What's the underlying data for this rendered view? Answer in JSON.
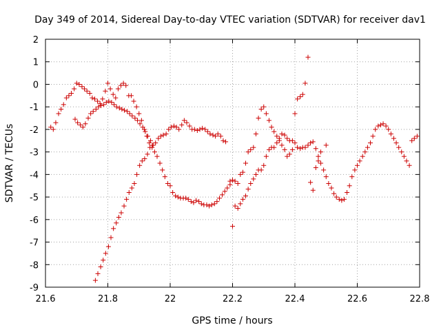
{
  "chart_data": {
    "type": "scatter",
    "title": "Day 349 of 2014, Sidereal Day-to-day VTEC variation (SDTVAR) for receiver dav1",
    "xlabel": "GPS time / hours",
    "ylabel": "SDTVAR / TECUs",
    "xlim": [
      21.6,
      22.8
    ],
    "ylim": [
      -9,
      2
    ],
    "xticks": [
      "21.6",
      "21.8",
      "22",
      "22.2",
      "22.4",
      "22.6",
      "22.8"
    ],
    "yticks": [
      "2",
      "1",
      "0",
      "-1",
      "-2",
      "-3",
      "-4",
      "-5",
      "-6",
      "-7",
      "-8",
      "-9"
    ],
    "grid": true,
    "marker": "+",
    "color": "#cc0000",
    "series": [
      {
        "values": [
          [
            21.617,
            -1.9
          ],
          [
            21.625,
            -2.0
          ],
          [
            21.633,
            -1.7
          ],
          [
            21.642,
            -1.3
          ],
          [
            21.65,
            -1.1
          ],
          [
            21.658,
            -0.9
          ],
          [
            21.667,
            -0.6
          ],
          [
            21.675,
            -0.5
          ],
          [
            21.683,
            -0.4
          ],
          [
            21.692,
            -0.2
          ],
          [
            21.7,
            0.05
          ],
          [
            21.708,
            0.0
          ],
          [
            21.717,
            -0.1
          ],
          [
            21.725,
            -0.2
          ],
          [
            21.733,
            -0.3
          ],
          [
            21.742,
            -0.4
          ],
          [
            21.75,
            -0.6
          ],
          [
            21.758,
            -0.65
          ],
          [
            21.767,
            -0.75
          ],
          [
            21.775,
            -0.85
          ],
          [
            21.783,
            -0.65
          ],
          [
            21.792,
            -0.3
          ],
          [
            21.8,
            0.05
          ],
          [
            21.808,
            -0.2
          ],
          [
            21.817,
            -0.45
          ],
          [
            21.825,
            -0.6
          ],
          [
            21.833,
            -0.2
          ],
          [
            21.842,
            -0.05
          ],
          [
            21.85,
            0.05
          ],
          [
            21.858,
            -0.05
          ],
          [
            21.867,
            -0.5
          ],
          [
            21.875,
            -0.5
          ],
          [
            21.883,
            -0.75
          ],
          [
            21.892,
            -1.0
          ],
          [
            21.9,
            -1.3
          ],
          [
            21.908,
            -1.6
          ],
          [
            21.917,
            -2.0
          ],
          [
            21.925,
            -2.3
          ],
          [
            21.933,
            -2.6
          ],
          [
            21.942,
            -2.8
          ],
          [
            21.95,
            -3.0
          ],
          [
            21.958,
            -3.2
          ],
          [
            21.967,
            -3.5
          ],
          [
            21.975,
            -3.8
          ],
          [
            21.983,
            -4.1
          ],
          [
            21.992,
            -4.4
          ],
          [
            22.0,
            -4.5
          ],
          [
            22.008,
            -4.8
          ],
          [
            22.017,
            -4.95
          ],
          [
            22.025,
            -5.0
          ],
          [
            22.033,
            -5.05
          ],
          [
            22.042,
            -5.05
          ],
          [
            22.05,
            -5.05
          ],
          [
            22.058,
            -5.1
          ],
          [
            22.067,
            -5.2
          ],
          [
            22.075,
            -5.25
          ],
          [
            22.083,
            -5.15
          ],
          [
            22.092,
            -5.2
          ],
          [
            22.1,
            -5.3
          ],
          [
            22.108,
            -5.35
          ],
          [
            22.117,
            -5.35
          ],
          [
            22.125,
            -5.4
          ],
          [
            22.133,
            -5.35
          ],
          [
            22.142,
            -5.3
          ],
          [
            22.15,
            -5.2
          ],
          [
            22.158,
            -5.05
          ],
          [
            22.167,
            -4.9
          ],
          [
            22.175,
            -4.75
          ],
          [
            22.183,
            -4.6
          ],
          [
            22.192,
            -4.45
          ],
          [
            22.2,
            -4.25
          ],
          [
            22.208,
            -4.3
          ],
          [
            22.217,
            -5.5
          ],
          [
            22.225,
            -5.3
          ],
          [
            22.233,
            -5.1
          ],
          [
            22.242,
            -4.95
          ],
          [
            22.25,
            -4.65
          ],
          [
            22.258,
            -4.4
          ],
          [
            22.267,
            -4.2
          ],
          [
            22.275,
            -4.0
          ],
          [
            22.283,
            -3.8
          ],
          [
            22.292,
            -3.8
          ],
          [
            22.3,
            -3.6
          ],
          [
            22.308,
            -3.2
          ],
          [
            22.317,
            -2.9
          ],
          [
            22.325,
            -2.8
          ],
          [
            22.333,
            -2.8
          ],
          [
            22.342,
            -2.6
          ],
          [
            22.35,
            -2.4
          ],
          [
            22.358,
            -2.2
          ],
          [
            22.367,
            -2.25
          ],
          [
            22.375,
            -2.4
          ],
          [
            22.383,
            -2.5
          ],
          [
            22.392,
            -2.5
          ],
          [
            22.4,
            -2.6
          ],
          [
            22.408,
            -2.8
          ],
          [
            22.417,
            -2.85
          ],
          [
            22.425,
            -2.8
          ],
          [
            22.433,
            -2.8
          ],
          [
            22.442,
            -2.7
          ],
          [
            22.45,
            -2.6
          ],
          [
            22.458,
            -2.55
          ],
          [
            22.467,
            -2.85
          ],
          [
            22.475,
            -3.2
          ],
          [
            22.483,
            -3.5
          ],
          [
            22.492,
            -3.8
          ],
          [
            22.5,
            -4.1
          ],
          [
            22.508,
            -4.4
          ],
          [
            22.517,
            -4.6
          ],
          [
            22.525,
            -4.85
          ],
          [
            22.533,
            -5.0
          ],
          [
            22.542,
            -5.1
          ],
          [
            22.55,
            -5.15
          ],
          [
            22.558,
            -5.1
          ],
          [
            22.567,
            -4.8
          ],
          [
            22.575,
            -4.5
          ],
          [
            22.583,
            -4.1
          ],
          [
            22.592,
            -3.8
          ],
          [
            22.6,
            -3.6
          ],
          [
            22.608,
            -3.4
          ],
          [
            22.617,
            -3.2
          ],
          [
            22.625,
            -3.0
          ],
          [
            22.633,
            -2.8
          ],
          [
            22.642,
            -2.6
          ],
          [
            22.65,
            -2.3
          ],
          [
            22.658,
            -2.0
          ],
          [
            22.667,
            -1.85
          ],
          [
            22.675,
            -1.8
          ],
          [
            22.683,
            -1.75
          ],
          [
            22.692,
            -1.85
          ],
          [
            22.7,
            -2.0
          ],
          [
            22.708,
            -2.2
          ],
          [
            22.717,
            -2.4
          ],
          [
            22.725,
            -2.6
          ],
          [
            22.733,
            -2.8
          ],
          [
            22.742,
            -3.0
          ],
          [
            22.75,
            -3.2
          ],
          [
            22.758,
            -3.4
          ],
          [
            22.767,
            -3.6
          ],
          [
            22.775,
            -2.5
          ],
          [
            22.783,
            -2.4
          ],
          [
            22.792,
            -2.3
          ],
          [
            21.695,
            -1.55
          ],
          [
            21.703,
            -1.7
          ],
          [
            21.712,
            -1.8
          ],
          [
            21.72,
            -1.9
          ],
          [
            21.728,
            -1.75
          ],
          [
            21.737,
            -1.5
          ],
          [
            21.745,
            -1.3
          ],
          [
            21.753,
            -1.2
          ],
          [
            21.762,
            -1.1
          ],
          [
            21.77,
            -1.0
          ],
          [
            21.778,
            -0.95
          ],
          [
            21.787,
            -0.9
          ],
          [
            21.795,
            -0.8
          ],
          [
            21.803,
            -0.75
          ],
          [
            21.812,
            -0.8
          ],
          [
            21.82,
            -0.9
          ],
          [
            21.828,
            -1.0
          ],
          [
            21.837,
            -1.05
          ],
          [
            21.845,
            -1.1
          ],
          [
            21.853,
            -1.15
          ],
          [
            21.862,
            -1.2
          ],
          [
            21.87,
            -1.3
          ],
          [
            21.878,
            -1.4
          ],
          [
            21.887,
            -1.5
          ],
          [
            21.895,
            -1.6
          ],
          [
            21.903,
            -1.75
          ],
          [
            21.912,
            -1.9
          ],
          [
            21.92,
            -2.1
          ],
          [
            21.928,
            -2.3
          ],
          [
            21.937,
            -2.5
          ],
          [
            21.945,
            -2.7
          ],
          [
            21.953,
            -2.6
          ],
          [
            21.962,
            -2.4
          ],
          [
            21.97,
            -2.3
          ],
          [
            21.978,
            -2.25
          ],
          [
            21.987,
            -2.2
          ],
          [
            21.995,
            -2.0
          ],
          [
            22.003,
            -1.9
          ],
          [
            22.012,
            -1.85
          ],
          [
            22.02,
            -1.9
          ],
          [
            22.028,
            -2.0
          ],
          [
            22.037,
            -1.8
          ],
          [
            22.045,
            -1.6
          ],
          [
            22.053,
            -1.7
          ],
          [
            22.062,
            -1.85
          ],
          [
            22.07,
            -2.0
          ],
          [
            22.078,
            -2.0
          ],
          [
            22.087,
            -2.05
          ],
          [
            22.095,
            -2.0
          ],
          [
            22.103,
            -1.95
          ],
          [
            22.112,
            -2.0
          ],
          [
            22.12,
            -2.1
          ],
          [
            22.128,
            -2.2
          ],
          [
            22.137,
            -2.25
          ],
          [
            22.145,
            -2.3
          ],
          [
            22.153,
            -2.2
          ],
          [
            22.162,
            -2.3
          ],
          [
            22.17,
            -2.5
          ],
          [
            22.178,
            -2.55
          ],
          [
            21.76,
            -8.7
          ],
          [
            21.768,
            -8.4
          ],
          [
            21.777,
            -8.1
          ],
          [
            21.785,
            -7.8
          ],
          [
            21.793,
            -7.5
          ],
          [
            21.802,
            -7.2
          ],
          [
            21.81,
            -6.8
          ],
          [
            21.818,
            -6.4
          ],
          [
            21.827,
            -6.15
          ],
          [
            21.835,
            -5.9
          ],
          [
            21.843,
            -5.7
          ],
          [
            21.852,
            -5.4
          ],
          [
            21.86,
            -5.1
          ],
          [
            21.868,
            -4.8
          ],
          [
            21.877,
            -4.6
          ],
          [
            21.885,
            -4.4
          ],
          [
            21.893,
            -4.0
          ],
          [
            21.902,
            -3.6
          ],
          [
            21.91,
            -3.4
          ],
          [
            21.918,
            -3.3
          ],
          [
            21.927,
            -3.1
          ],
          [
            21.935,
            -2.8
          ],
          [
            21.943,
            -2.7
          ],
          [
            22.192,
            -4.3
          ],
          [
            22.2,
            -6.3
          ],
          [
            22.208,
            -5.4
          ],
          [
            22.217,
            -4.4
          ],
          [
            22.225,
            -4.0
          ],
          [
            22.233,
            -3.9
          ],
          [
            22.242,
            -3.5
          ],
          [
            22.25,
            -3.0
          ],
          [
            22.258,
            -2.9
          ],
          [
            22.267,
            -2.8
          ],
          [
            22.275,
            -2.2
          ],
          [
            22.283,
            -1.5
          ],
          [
            22.292,
            -1.1
          ],
          [
            22.3,
            -1.0
          ],
          [
            22.308,
            -1.3
          ],
          [
            22.317,
            -1.6
          ],
          [
            22.325,
            -1.9
          ],
          [
            22.333,
            -2.1
          ],
          [
            22.342,
            -2.3
          ],
          [
            22.35,
            -2.5
          ],
          [
            22.358,
            -2.7
          ],
          [
            22.367,
            -2.9
          ],
          [
            22.375,
            -3.2
          ],
          [
            22.383,
            -3.1
          ],
          [
            22.392,
            -2.9
          ],
          [
            22.4,
            -1.3
          ],
          [
            22.408,
            -0.65
          ],
          [
            22.417,
            -0.55
          ],
          [
            22.425,
            -0.45
          ],
          [
            22.433,
            0.05
          ],
          [
            22.442,
            1.2
          ],
          [
            22.45,
            -4.35
          ],
          [
            22.458,
            -4.7
          ],
          [
            22.467,
            -3.7
          ],
          [
            22.475,
            -3.4
          ],
          [
            22.483,
            -3.0
          ],
          [
            22.5,
            -2.7
          ]
        ]
      }
    ]
  }
}
